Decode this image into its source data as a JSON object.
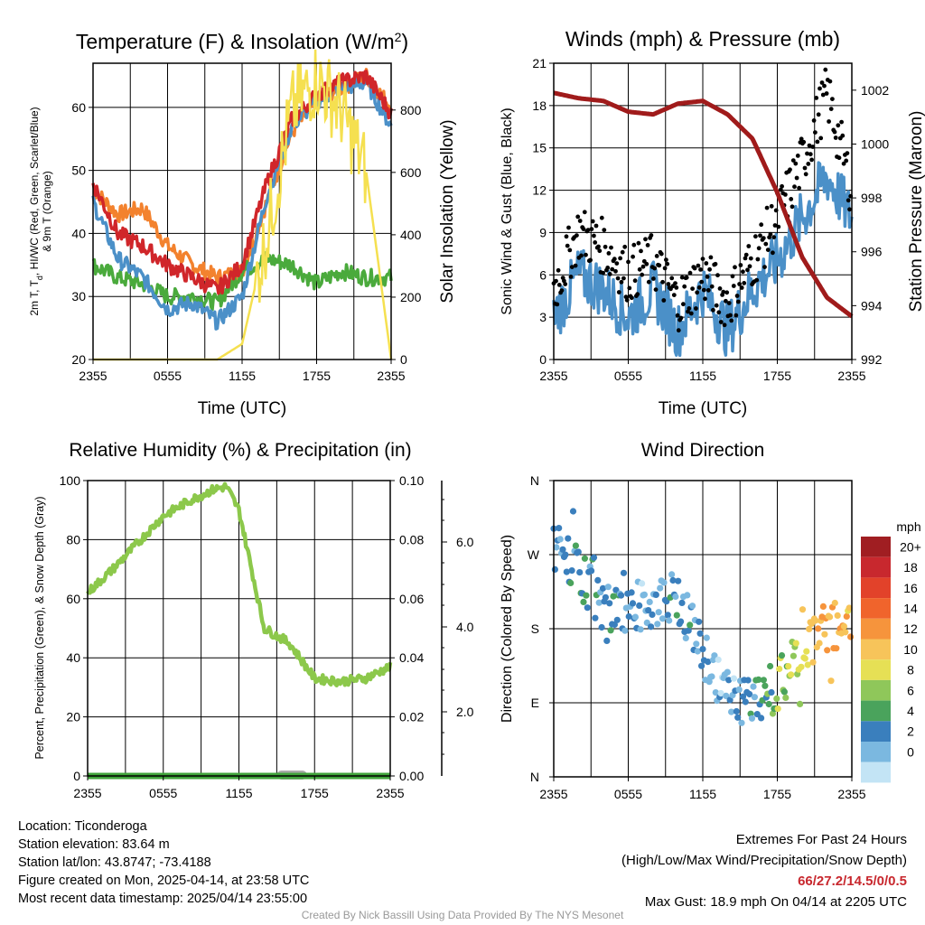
{
  "xticks": [
    "2355",
    "0555",
    "1155",
    "1755",
    "2355"
  ],
  "panels": {
    "temp": {
      "title": "Temperature (F) & Insolation (W/m",
      "title_sup": "2",
      "title_end": ")",
      "ylabel_line1": "2m T, T",
      "ylabel_sub": "d",
      "ylabel_line1_end": ", HI/WC (Red, Green, Scarlet/Blue)",
      "ylabel_line2": "& 9m T (Orange)",
      "y2label": "Solar Insolation (Yellow)",
      "xlabel": "Time (UTC)",
      "yticks": [
        "20",
        "30",
        "40",
        "50",
        "60"
      ],
      "y2ticks": [
        "0",
        "200",
        "400",
        "600",
        "800"
      ]
    },
    "wind": {
      "title": "Winds (mph) & Pressure (mb)",
      "ylabel": "Sonic Wind & Gust (Blue, Black)",
      "y2label": "Station Pressure (Maroon)",
      "xlabel": "Time (UTC)",
      "yticks": [
        "0",
        "3",
        "6",
        "9",
        "12",
        "15",
        "18",
        "21"
      ],
      "y2ticks": [
        "992",
        "994",
        "996",
        "998",
        "1000",
        "1002"
      ]
    },
    "rh": {
      "title": "Relative Humidity (%) & Precipitation (in)",
      "ylabel": "Percent, Precipitation (Green), & Snow Depth (Gray)",
      "yticks": [
        "0",
        "20",
        "40",
        "60",
        "80",
        "100"
      ],
      "y2ticks": [
        "0.00",
        "0.02",
        "0.04",
        "0.06",
        "0.08",
        "0.10"
      ],
      "y3ticks": [
        "2.0",
        "4.0",
        "6.0"
      ]
    },
    "dir": {
      "title": "Wind Direction",
      "ylabel": "Direction (Colored By Speed)",
      "yticks": [
        "N",
        "E",
        "S",
        "W",
        "N"
      ],
      "legend_title": "mph",
      "legend_labels": [
        "20+",
        "18",
        "16",
        "14",
        "12",
        "10",
        "8",
        "6",
        "4",
        "2",
        "0"
      ],
      "legend_colors": [
        "#a01e22",
        "#c8282e",
        "#e2422a",
        "#f0642c",
        "#f6943c",
        "#f7c45a",
        "#e6e055",
        "#8fc75a",
        "#4aa35c",
        "#3a7fbd",
        "#7bb8e0",
        "#c3e4f5"
      ]
    }
  },
  "colors": {
    "temp_red": "#d0262a",
    "dew_green": "#4aaa3c",
    "wc_blue": "#4b90c8",
    "t9_orange": "#f3822e",
    "solar_yellow": "#f5e050",
    "pressure_maroon": "#a01b1b",
    "wind_blue": "#4b90c8",
    "gust_black": "#000000",
    "rh_green": "#8cc84b",
    "precip_green": "#3fa33a",
    "snow_gray": "#aaaaaa"
  },
  "chart_data": [
    {
      "type": "line",
      "title": "Temperature (F) & Insolation (W/m2)",
      "xlabel": "Time (UTC)",
      "ylabel": "2m T, Td, HI/WC (Red, Green, Scarlet/Blue) & 9m T (Orange)",
      "y2label": "Solar Insolation (Yellow)",
      "x_hours": [
        0,
        2,
        4,
        6,
        8,
        10,
        12,
        14,
        16,
        18,
        20,
        22,
        24
      ],
      "ylim": [
        20,
        67
      ],
      "y2lim": [
        0,
        950
      ],
      "series": [
        {
          "name": "2m T",
          "values": [
            48,
            40,
            38,
            35,
            33,
            31,
            35,
            48,
            58,
            62,
            64,
            65,
            59
          ]
        },
        {
          "name": "Td",
          "values": [
            35,
            33,
            32,
            30,
            30,
            29,
            34,
            36,
            35,
            32,
            34,
            33,
            33
          ]
        },
        {
          "name": "WC",
          "values": [
            45,
            36,
            33,
            28,
            29,
            26,
            30,
            46,
            57,
            61,
            63,
            64,
            57
          ]
        },
        {
          "name": "9m T",
          "values": [
            47,
            43,
            44,
            38,
            35,
            33,
            34,
            45,
            56,
            61,
            63,
            65,
            60
          ]
        },
        {
          "name": "Solar",
          "values": [
            0,
            0,
            0,
            0,
            0,
            0,
            50,
            400,
            800,
            900,
            800,
            600,
            0
          ]
        }
      ]
    },
    {
      "type": "line",
      "title": "Winds (mph) & Pressure (mb)",
      "xlabel": "Time (UTC)",
      "ylabel": "Sonic Wind & Gust (Blue, Black)",
      "y2label": "Station Pressure (Maroon)",
      "x_hours": [
        0,
        2,
        4,
        6,
        8,
        10,
        12,
        14,
        16,
        18,
        20,
        22,
        24
      ],
      "ylim": [
        0,
        21
      ],
      "y2lim": [
        992,
        1003
      ],
      "series": [
        {
          "name": "Sonic Wind",
          "values": [
            3,
            6,
            5,
            3,
            5,
            2,
            5,
            2,
            5,
            7,
            10,
            13,
            10
          ]
        },
        {
          "name": "Gust",
          "values": [
            5,
            9,
            8,
            6,
            7,
            4,
            6,
            4,
            7,
            10,
            14,
            18.9,
            12
          ]
        },
        {
          "name": "Pressure",
          "values": [
            1001.9,
            1001.7,
            1001.6,
            1001.2,
            1001.1,
            1001.5,
            1001.6,
            1001.1,
            1000.2,
            998.2,
            995.8,
            994.3,
            993.6
          ]
        }
      ]
    },
    {
      "type": "line",
      "title": "Relative Humidity (%) & Precipitation (in)",
      "ylabel": "Percent, Precipitation (Green), & Snow Depth (Gray)",
      "x_hours": [
        0,
        2,
        4,
        6,
        8,
        10,
        11,
        12,
        14,
        16,
        18,
        20,
        22,
        24
      ],
      "ylim": [
        0,
        100
      ],
      "y2lim": [
        0,
        0.1
      ],
      "series": [
        {
          "name": "RH",
          "values": [
            62,
            70,
            79,
            88,
            93,
            97,
            98,
            90,
            50,
            45,
            33,
            32,
            33,
            37
          ]
        },
        {
          "name": "Precipitation",
          "values": [
            0,
            0,
            0,
            0,
            0,
            0,
            0,
            0,
            0,
            0,
            0,
            0,
            0,
            0
          ]
        }
      ]
    },
    {
      "type": "scatter",
      "title": "Wind Direction",
      "ylabel": "Direction (Colored By Speed)",
      "yticks": [
        "N",
        "E",
        "S",
        "W",
        "N"
      ],
      "x_hours": [
        0,
        2,
        4,
        6,
        8,
        10,
        12,
        14,
        16,
        18,
        20,
        22,
        24
      ],
      "direction_deg": [
        280,
        250,
        200,
        205,
        210,
        220,
        150,
        100,
        90,
        110,
        160,
        180,
        190
      ],
      "speed_mph": [
        3,
        5,
        4,
        3,
        2,
        4,
        3,
        2,
        4,
        7,
        10,
        14,
        12
      ],
      "colorbar_units": "mph"
    }
  ],
  "info": {
    "location": "Location: Ticonderoga",
    "elevation": "Station elevation: 83.64 m",
    "latlon": "Station lat/lon: 43.8747; -73.4188",
    "created": "Figure created on Mon, 2025-04-14, at 23:58 UTC",
    "recent": "Most recent data timestamp: 2025/04/14 23:55:00",
    "extremes_title": "Extremes For Past 24 Hours",
    "extremes_desc": "(High/Low/Max Wind/Precipitation/Snow Depth)",
    "extremes_values": "66/27.2/14.5/0/0.5",
    "max_gust": "Max Gust: 18.9 mph On 04/14 at 2205 UTC",
    "credit": "Created By Nick Bassill Using Data Provided By The NYS Mesonet"
  }
}
